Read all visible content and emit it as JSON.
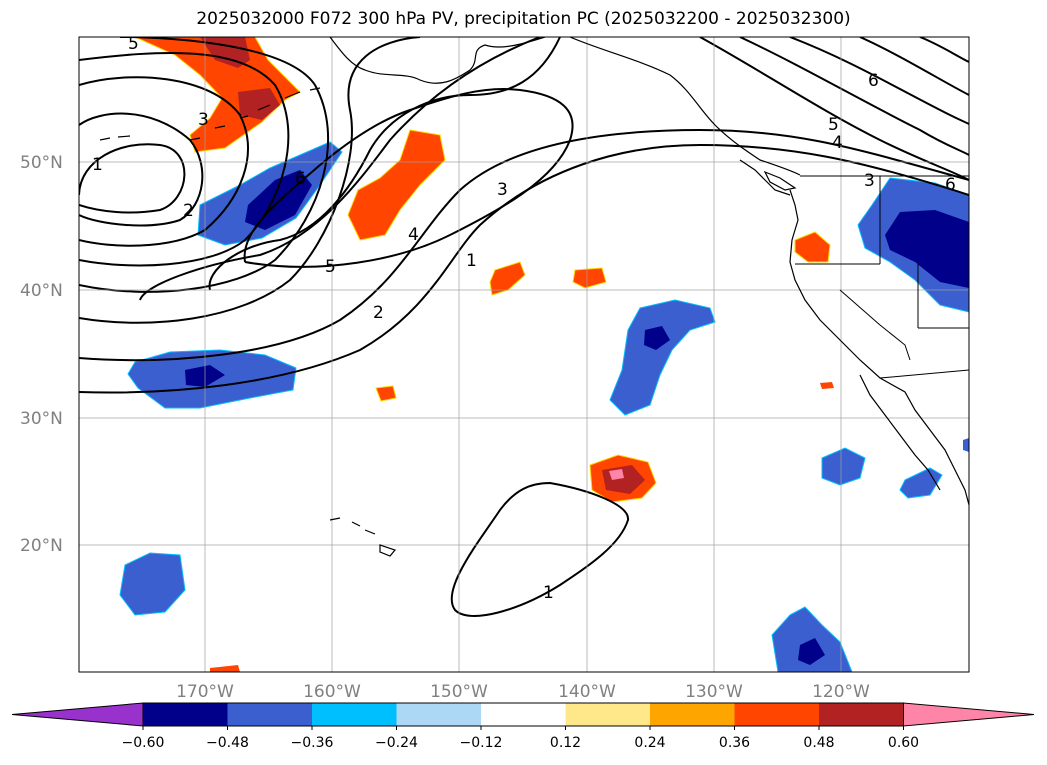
{
  "title": "2025032000 F072 300 hPa PV, precipitation PC (2025032200 - 2025032300)",
  "lat_labels": [
    "50°N",
    "40°N",
    "30°N",
    "20°N"
  ],
  "lon_labels": [
    "170°W",
    "160°W",
    "150°W",
    "140°W",
    "130°W",
    "120°W"
  ],
  "colorbar": {
    "ticks": [
      "−0.60",
      "−0.48",
      "−0.36",
      "−0.24",
      "−0.12",
      "0.12",
      "0.24",
      "0.36",
      "0.48",
      "0.60"
    ],
    "colors": [
      "#9932cc",
      "#00008b",
      "#3b5fcf",
      "#00bfff",
      "#add8f5",
      "#ffffff",
      "#ffe88a",
      "#ffa500",
      "#ff4500",
      "#b22222",
      "#ff85a8"
    ]
  },
  "contour_labels": [
    "5",
    "3",
    "1",
    "2",
    "6",
    "5",
    "4",
    "3",
    "1",
    "2",
    "5",
    "4",
    "6",
    "3",
    "6",
    "1"
  ]
}
